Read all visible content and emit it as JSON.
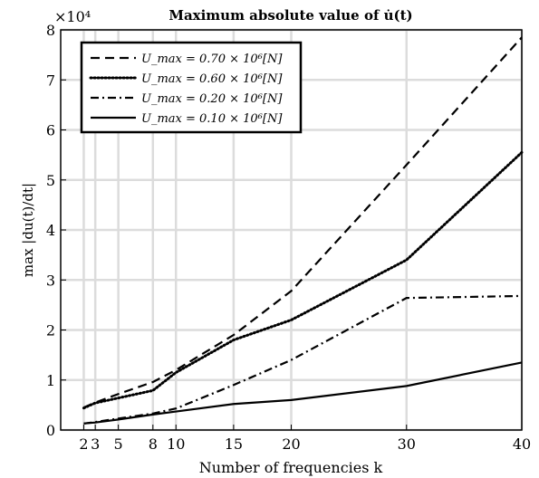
{
  "chart_data": {
    "type": "line",
    "title": "Maximum absolute value of u̇(t)",
    "xlabel": "Number of frequencies k",
    "ylabel": "max |du(t)/dt|",
    "exponent_label": "×10⁴",
    "x": [
      2,
      3,
      5,
      8,
      10,
      15,
      20,
      30,
      40
    ],
    "xlim": [
      0,
      40
    ],
    "ylim": [
      0,
      80000
    ],
    "xticks": [
      2,
      3,
      5,
      8,
      10,
      15,
      20,
      30,
      40
    ],
    "yticks": [
      0,
      10000,
      20000,
      30000,
      40000,
      50000,
      60000,
      70000,
      80000
    ],
    "ytick_labels": [
      "0",
      "1",
      "2",
      "3",
      "4",
      "5",
      "6",
      "7",
      "8"
    ],
    "grid": true,
    "legend_position": "top-left",
    "series": [
      {
        "name": "U_max = 0.70 × 10⁶[N]",
        "style": "dashed",
        "values": [
          4500,
          5500,
          7200,
          9600,
          12000,
          19000,
          27800,
          53000,
          78500
        ]
      },
      {
        "name": "U_max = 0.60 × 10⁶[N]",
        "style": "dotted",
        "values": [
          4400,
          5400,
          6400,
          7900,
          11500,
          18000,
          22000,
          34000,
          55500
        ]
      },
      {
        "name": "U_max = 0.20 × 10⁶[N]",
        "style": "dashdot",
        "values": [
          1300,
          1600,
          2300,
          3300,
          4300,
          9000,
          14000,
          26400,
          26800
        ]
      },
      {
        "name": "U_max = 0.10 × 10⁶[N]",
        "style": "solid",
        "values": [
          1300,
          1500,
          2100,
          3100,
          3700,
          5200,
          6000,
          8800,
          13500
        ]
      }
    ]
  }
}
